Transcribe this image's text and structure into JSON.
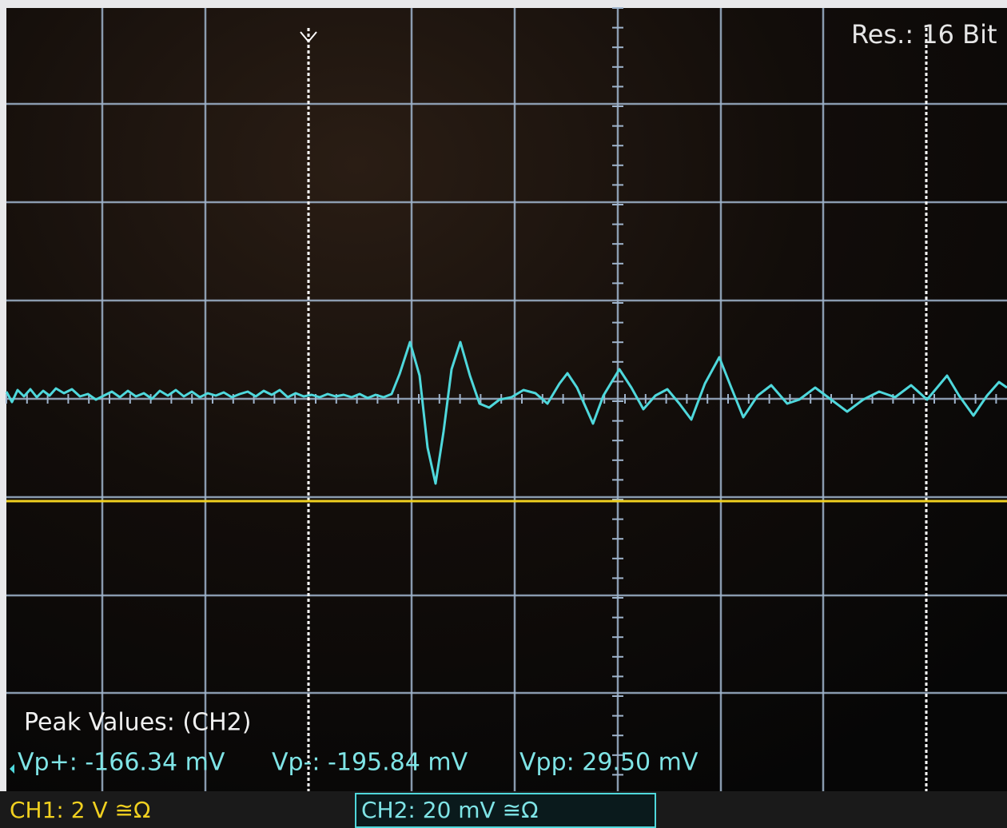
{
  "header": {
    "resolution": "Res.: 16 Bit"
  },
  "measurements": {
    "title": "Peak Values: (CH2)",
    "vp_plus": "Vp+: -166.34 mV",
    "vp_minus": "Vp-: -195.84 mV",
    "vpp": "Vpp: 29.50 mV"
  },
  "channels": {
    "ch1": "CH1: 2 V ≅Ω",
    "ch2": "CH2: 20 mV ≅Ω"
  }
}
